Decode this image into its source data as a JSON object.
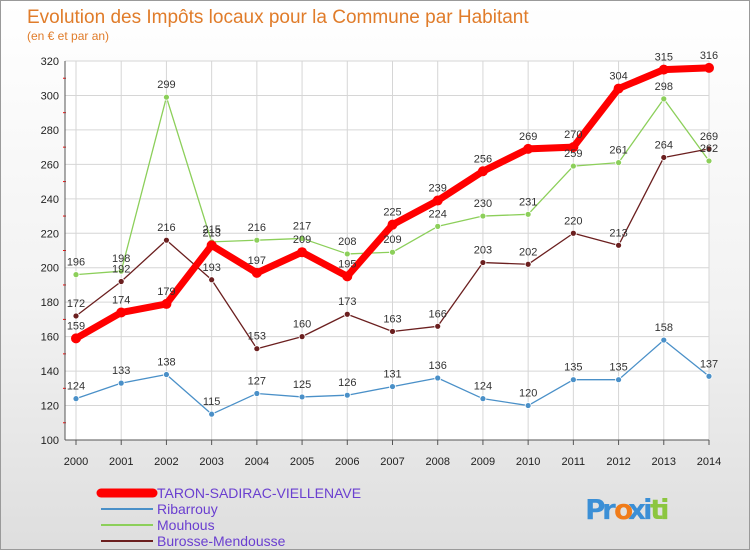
{
  "chart_data": {
    "type": "line",
    "title": "Evolution des Impôts locaux pour la Commune par Habitant",
    "subtitle": "(en € et par an)",
    "x": [
      "2000",
      "2001",
      "2002",
      "2003",
      "2004",
      "2005",
      "2006",
      "2007",
      "2008",
      "2009",
      "2010",
      "2011",
      "2012",
      "2013",
      "2014"
    ],
    "ylim": [
      100,
      320
    ],
    "yticks": [
      "100",
      "120",
      "140",
      "160",
      "180",
      "200",
      "220",
      "240",
      "260",
      "280",
      "300",
      "320"
    ],
    "grid": true,
    "legend_position": "bottom-left",
    "series": [
      {
        "name": "TARON-SADIRAC-VIELLENAVE",
        "color": "#ff0000",
        "values": [
          159,
          174,
          179,
          213,
          197,
          209,
          195,
          225,
          239,
          256,
          269,
          270,
          304,
          315,
          316
        ]
      },
      {
        "name": "Ribarrouy",
        "color": "#4a90c8",
        "values": [
          124,
          133,
          138,
          115,
          127,
          125,
          126,
          131,
          136,
          124,
          120,
          135,
          135,
          158,
          137
        ]
      },
      {
        "name": "Mouhous",
        "color": "#8ccf5a",
        "values": [
          196,
          198,
          299,
          215,
          216,
          217,
          208,
          209,
          224,
          230,
          231,
          259,
          261,
          298,
          262
        ]
      },
      {
        "name": "Burosse-Mendousse",
        "color": "#6b1f1f",
        "values": [
          172,
          192,
          216,
          193,
          153,
          160,
          173,
          163,
          166,
          203,
          202,
          220,
          213,
          264,
          269
        ]
      }
    ]
  },
  "logo": {
    "text": "Proxiti",
    "letters": [
      "P",
      "r",
      "o",
      "x",
      "i",
      "t",
      "i"
    ],
    "colors": [
      "#3b8fd6",
      "#3b8fd6",
      "#f07c1a",
      "#3b8fd6",
      "#3b8fd6",
      "#8cc63f",
      "#8cc63f"
    ]
  }
}
